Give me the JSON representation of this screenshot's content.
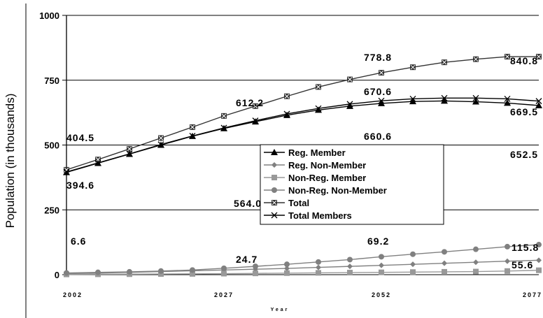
{
  "chart_data": {
    "type": "line",
    "xlabel": "Year",
    "ylabel": "Population (in thousands)",
    "x_ticks": [
      "2002",
      "2027",
      "2052",
      "2077"
    ],
    "y_ticks": [
      "0",
      "250",
      "500",
      "750",
      "1000"
    ],
    "xlim": [
      2002,
      2077
    ],
    "ylim": [
      0,
      1000
    ],
    "grid": "horizontal",
    "legend_position": "center",
    "x": [
      2002,
      2007,
      2012,
      2017,
      2022,
      2027,
      2032,
      2037,
      2042,
      2047,
      2052,
      2057,
      2062,
      2067,
      2072,
      2077
    ],
    "series": [
      {
        "name": "Reg. Member",
        "color": "#000000",
        "marker": "triangle",
        "values": [
          394.6,
          430,
          465,
          500,
          534,
          564.0,
          590,
          615,
          635,
          650,
          660.6,
          668,
          670,
          667,
          662,
          652.5
        ]
      },
      {
        "name": "Reg. Non-Member",
        "color": "#808080",
        "marker": "diamond",
        "values": [
          4,
          6,
          9,
          12,
          15,
          18,
          21,
          24,
          28,
          32,
          36,
          40,
          44,
          48,
          52,
          55.6
        ]
      },
      {
        "name": "Non-Reg. Member",
        "color": "#999999",
        "marker": "square",
        "values": [
          1,
          1.5,
          2,
          2.5,
          3,
          4,
          5,
          6,
          7,
          8,
          9,
          10,
          11,
          12,
          14,
          17
        ]
      },
      {
        "name": "Non-Reg. Non-Member",
        "color": "#808080",
        "marker": "circle",
        "values": [
          6.6,
          9,
          11,
          14,
          18,
          24.7,
          32,
          40,
          49,
          58,
          69.2,
          79,
          88,
          98,
          108,
          115.8
        ]
      },
      {
        "name": "Total",
        "color": "#333333",
        "marker": "square-x",
        "values": [
          404.5,
          444,
          485,
          527,
          569,
          612.2,
          650,
          688,
          724,
          753,
          778.8,
          800,
          819,
          831,
          840.8,
          840.8
        ]
      },
      {
        "name": "Total Members",
        "color": "#000000",
        "marker": "x",
        "values": [
          396,
          431,
          466,
          502,
          535,
          566,
          594,
          620,
          641,
          658,
          670.6,
          678,
          681,
          681,
          678,
          669.5
        ]
      }
    ],
    "data_labels": [
      {
        "text": "404.5"
      },
      {
        "text": "394.6"
      },
      {
        "text": "612.2"
      },
      {
        "text": "564.0"
      },
      {
        "text": "778.8"
      },
      {
        "text": "670.6"
      },
      {
        "text": "660.6"
      },
      {
        "text": "840.8"
      },
      {
        "text": "669.5"
      },
      {
        "text": "652.5"
      },
      {
        "text": "6.6"
      },
      {
        "text": "24.7"
      },
      {
        "text": "69.2"
      },
      {
        "text": "115.8"
      },
      {
        "text": "55.6"
      }
    ]
  }
}
